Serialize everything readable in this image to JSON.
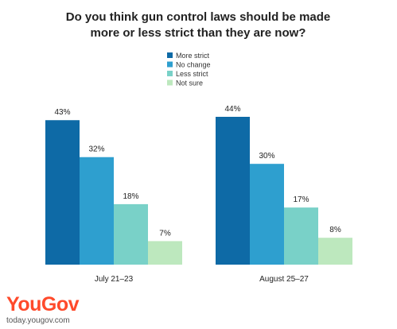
{
  "chart_data": {
    "type": "bar",
    "title": [
      "Do you think gun control laws should be made",
      "more or less strict than they are now?"
    ],
    "categories": [
      "July 21–23",
      "August 25–27"
    ],
    "series": [
      {
        "name": "More strict",
        "color": "#0e6aa6",
        "values": [
          43,
          44
        ]
      },
      {
        "name": "No change",
        "color": "#2e9fcf",
        "values": [
          32,
          30
        ]
      },
      {
        "name": "Less strict",
        "color": "#79d1c8",
        "values": [
          18,
          17
        ]
      },
      {
        "name": "Not sure",
        "color": "#bde8be",
        "values": [
          7,
          8
        ]
      }
    ],
    "value_suffix": "%",
    "ylim": [
      0,
      44
    ],
    "grid": false,
    "legend_position": "top-center"
  },
  "brand": {
    "logo_you": "You",
    "logo_gov": "Gov",
    "url": "today.yougov.com"
  }
}
